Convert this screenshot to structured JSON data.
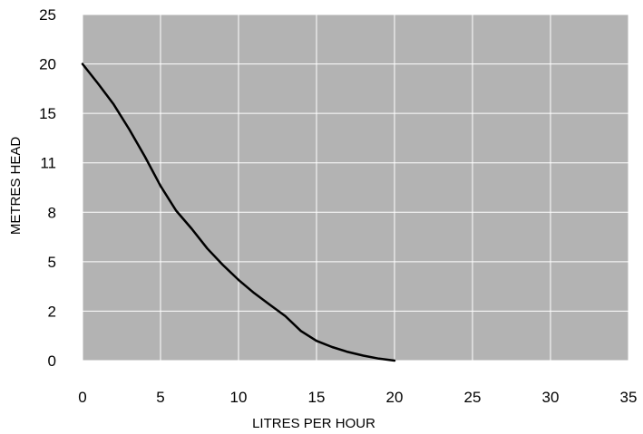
{
  "chart_data": {
    "type": "line",
    "xlabel": "LITRES PER HOUR",
    "ylabel": "METRES HEAD",
    "x_ticks": [
      "0",
      "5",
      "10",
      "15",
      "20",
      "25",
      "30",
      "35"
    ],
    "y_ticks": [
      "0",
      "2",
      "5",
      "8",
      "11",
      "15",
      "20",
      "25"
    ],
    "xlim": [
      0,
      35
    ],
    "y_scale": "categorical ticks, evenly spaced",
    "grid": true,
    "legend": "none",
    "series": [
      {
        "points": [
          {
            "x": 0,
            "y": 20
          },
          {
            "x": 1,
            "y": 18
          },
          {
            "x": 2,
            "y": 15.9
          },
          {
            "x": 3,
            "y": 13.7
          },
          {
            "x": 4,
            "y": 11.5
          },
          {
            "x": 5,
            "y": 9.6
          },
          {
            "x": 6,
            "y": 8.1
          },
          {
            "x": 7,
            "y": 7.0
          },
          {
            "x": 8,
            "y": 5.8
          },
          {
            "x": 9,
            "y": 4.8
          },
          {
            "x": 10,
            "y": 3.9
          },
          {
            "x": 11,
            "y": 3.1
          },
          {
            "x": 12,
            "y": 2.4
          },
          {
            "x": 13,
            "y": 1.8
          },
          {
            "x": 14,
            "y": 1.2
          },
          {
            "x": 15,
            "y": 0.8
          },
          {
            "x": 16,
            "y": 0.55
          },
          {
            "x": 17,
            "y": 0.35
          },
          {
            "x": 18,
            "y": 0.2
          },
          {
            "x": 19,
            "y": 0.08
          },
          {
            "x": 20,
            "y": 0
          }
        ]
      }
    ]
  },
  "colors": {
    "plot_background": "#b3b3b3",
    "grid": "#ffffff",
    "curve": "#000000",
    "page_background": "#ffffff"
  }
}
